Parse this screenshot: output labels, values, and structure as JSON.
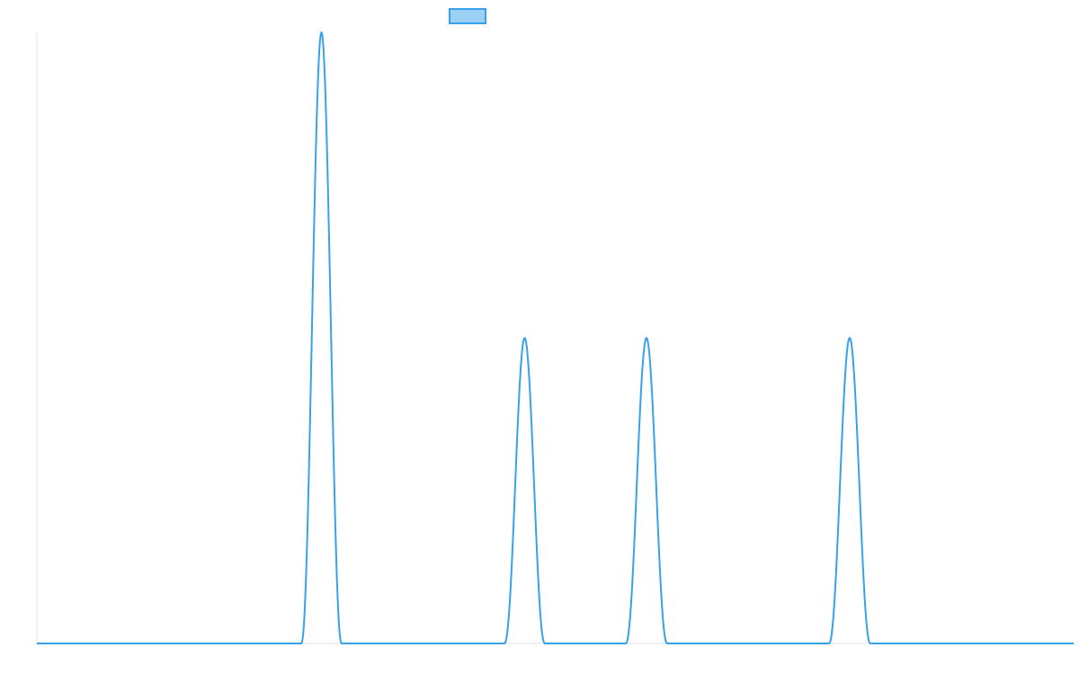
{
  "colors": {
    "series_line": "#36a2eb",
    "series_fill": "#9ad0f5",
    "axis": "#e5e5e5",
    "background": "#ffffff"
  },
  "chart_data": {
    "type": "line",
    "title": "",
    "xlabel": "",
    "ylabel": "",
    "xlim": [
      0,
      1
    ],
    "ylim": [
      0,
      1
    ],
    "grid": false,
    "legend": {
      "position": "top-center",
      "entries": [
        {
          "label": "",
          "color": "#36a2eb",
          "fill": "#9ad0f5"
        }
      ]
    },
    "series": [
      {
        "shape": "pulse-train",
        "baseline": 0,
        "x": [
          0.0,
          0.255,
          0.274,
          0.294,
          0.451,
          0.47,
          0.49,
          0.568,
          0.588,
          0.608,
          0.764,
          0.784,
          0.804,
          1.0
        ],
        "y": [
          0,
          0,
          1.0,
          0,
          0,
          0.5,
          0,
          0,
          0.5,
          0,
          0,
          0.5,
          0,
          0
        ],
        "peaks": [
          {
            "x": 0.274,
            "y": 1.0
          },
          {
            "x": 0.47,
            "y": 0.5
          },
          {
            "x": 0.588,
            "y": 0.5
          },
          {
            "x": 0.784,
            "y": 0.5
          }
        ]
      }
    ]
  }
}
